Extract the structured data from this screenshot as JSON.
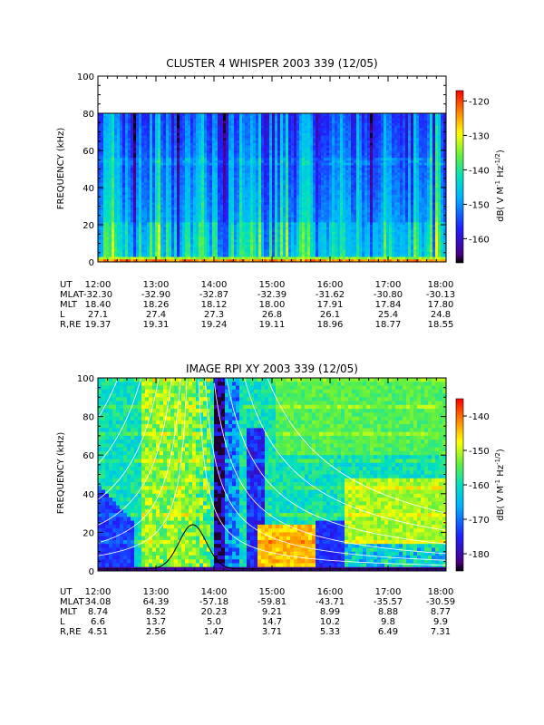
{
  "chart_data": [
    {
      "type": "heatmap",
      "title": "CLUSTER 4 WHISPER 2003 339 (12/05)",
      "ylabel": "FREQUENCY (kHz)",
      "ylim": [
        0,
        100
      ],
      "yticks": [
        "0",
        "20",
        "40",
        "60",
        "80",
        "100"
      ],
      "x_time_labels": [
        "12:00",
        "13:00",
        "14:00",
        "15:00",
        "16:00",
        "17:00",
        "18:00"
      ],
      "colorbar_label": "dB( V M⁻¹ Hz⁻¹ᐟ²)",
      "colorbar_label_parts": {
        "main": "dB( V M",
        "sup1": "-1",
        "mid": " Hz",
        "sup2": "-1/2",
        "end": ")"
      },
      "colorbar_range": [
        -167,
        -117
      ],
      "colorbar_ticks": [
        -120,
        -130,
        -140,
        -150,
        -160
      ],
      "data_top_kHz": 80,
      "ephemeris": [
        {
          "name": "UT",
          "values": [
            "12:00",
            "13:00",
            "14:00",
            "15:00",
            "16:00",
            "17:00",
            "18:00"
          ]
        },
        {
          "name": "MLAT",
          "values": [
            "-32.30",
            "-32.90",
            "-32.87",
            "-32.39",
            "-31.62",
            "-30.80",
            "-30.13"
          ]
        },
        {
          "name": "MLT",
          "values": [
            "18.40",
            "18.26",
            "18.12",
            "18.00",
            "17.91",
            "17.84",
            "17.80"
          ]
        },
        {
          "name": "L",
          "values": [
            "27.1",
            "27.4",
            "27.3",
            "26.8",
            "26.1",
            "25.4",
            "24.8"
          ]
        },
        {
          "name": "R,RE",
          "values": [
            "19.37",
            "19.31",
            "19.24",
            "19.11",
            "18.96",
            "18.77",
            "18.55"
          ]
        }
      ]
    },
    {
      "type": "heatmap",
      "title": "IMAGE RPI XY 2003 339 (12/05)",
      "ylabel": "FREQUENCY (kHz)",
      "ylim": [
        0,
        100
      ],
      "yticks": [
        "0",
        "20",
        "40",
        "60",
        "80",
        "100"
      ],
      "x_time_labels": [
        "12:00",
        "13:00",
        "14:00",
        "15:00",
        "16:00",
        "17:00",
        "18:00"
      ],
      "colorbar_label_parts": {
        "main": "dB( V M",
        "sup1": "-1",
        "mid": " Hz",
        "sup2": "-1/2",
        "end": ")"
      },
      "colorbar_range": [
        -185,
        -135
      ],
      "colorbar_ticks": [
        -140,
        -150,
        -160,
        -170,
        -180
      ],
      "ephemeris": [
        {
          "name": "UT",
          "values": [
            "12:00",
            "13:00",
            "14:00",
            "15:00",
            "16:00",
            "17:00",
            "18:00"
          ]
        },
        {
          "name": "MLAT",
          "values": [
            "34.08",
            "64.39",
            "-57.18",
            "-59.81",
            "-43.71",
            "-35.57",
            "-30.59"
          ]
        },
        {
          "name": "MLT",
          "values": [
            "8.74",
            "8.52",
            "20.23",
            "9.21",
            "8.99",
            "8.88",
            "8.77"
          ]
        },
        {
          "name": "L",
          "values": [
            "6.6",
            "13.7",
            "5.0",
            "14.7",
            "10.2",
            "9.8",
            "9.9"
          ]
        },
        {
          "name": "R,RE",
          "values": [
            "4.51",
            "2.56",
            "1.47",
            "3.71",
            "5.33",
            "6.49",
            "7.31"
          ]
        }
      ]
    }
  ]
}
